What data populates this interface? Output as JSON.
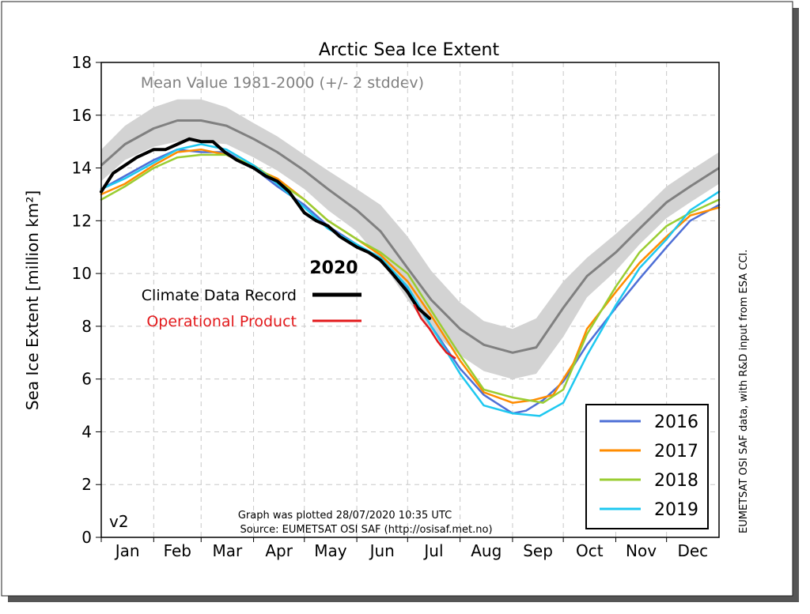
{
  "chart_data": {
    "type": "line",
    "title": "Arctic Sea Ice Extent",
    "subtitle": "Mean Value 1981-2000 (+/- 2 stddev)",
    "ylabel": "Sea Ice Extent [million km²]",
    "xlabel": "",
    "ylim": [
      0,
      18
    ],
    "xlim": [
      1,
      366
    ],
    "yticks": [
      0,
      2,
      4,
      6,
      8,
      10,
      12,
      14,
      16,
      18
    ],
    "months": [
      "Jan",
      "Feb",
      "Mar",
      "Apr",
      "May",
      "Jun",
      "Jul",
      "Aug",
      "Sep",
      "Oct",
      "Nov",
      "Dec"
    ],
    "grid": true,
    "version_label": "v2",
    "plotted_note": "Graph was plotted 28/07/2020 10:35 UTC",
    "source_note": "Source: EUMETSAT OSI SAF (http://osisaf.met.no)",
    "side_note": "EUMETSAT OSI SAF data, with R&D input from ESA CCI.",
    "colors": {
      "mean": "#808080",
      "band": "#d3d3d3",
      "cdr": "#000000",
      "operational": "#e31a1c",
      "y2016": "#4e6fd6",
      "y2017": "#ff8c00",
      "y2018": "#9acd32",
      "y2019": "#1ec8f0"
    },
    "mean": {
      "x": [
        1,
        15,
        32,
        46,
        60,
        75,
        91,
        105,
        121,
        135,
        152,
        166,
        182,
        196,
        213,
        227,
        244,
        258,
        274,
        288,
        305,
        319,
        335,
        349,
        366
      ],
      "y": [
        14.1,
        14.9,
        15.5,
        15.8,
        15.8,
        15.6,
        15.1,
        14.6,
        13.9,
        13.2,
        12.4,
        11.6,
        10.2,
        9.0,
        7.9,
        7.3,
        7.0,
        7.2,
        8.7,
        9.9,
        10.8,
        11.7,
        12.7,
        13.3,
        14.0
      ],
      "upper": [
        14.7,
        15.6,
        16.3,
        16.6,
        16.6,
        16.3,
        15.7,
        15.2,
        14.5,
        13.9,
        13.2,
        12.6,
        11.4,
        10.1,
        8.9,
        8.2,
        7.9,
        8.3,
        9.7,
        10.6,
        11.5,
        12.3,
        13.3,
        13.9,
        14.6
      ],
      "lower": [
        13.5,
        14.3,
        14.8,
        15.0,
        15.0,
        14.9,
        14.4,
        13.9,
        13.2,
        12.4,
        11.6,
        10.5,
        9.0,
        7.8,
        6.9,
        6.3,
        6.0,
        6.2,
        7.6,
        9.1,
        10.1,
        11.1,
        12.1,
        12.7,
        13.4
      ]
    },
    "series": [
      {
        "name": "2016",
        "x": [
          1,
          15,
          32,
          46,
          60,
          75,
          91,
          105,
          121,
          135,
          152,
          166,
          182,
          196,
          213,
          227,
          244,
          252,
          262,
          274,
          288,
          305,
          319,
          335,
          349,
          366
        ],
        "y": [
          13.2,
          13.7,
          14.3,
          14.7,
          14.6,
          14.6,
          14.0,
          13.3,
          12.6,
          11.8,
          11.1,
          10.5,
          9.4,
          8.0,
          6.4,
          5.4,
          4.7,
          4.8,
          5.2,
          5.9,
          7.3,
          8.7,
          9.8,
          11.0,
          12.0,
          12.6
        ]
      },
      {
        "name": "2017",
        "x": [
          1,
          15,
          32,
          46,
          60,
          75,
          91,
          105,
          121,
          135,
          152,
          166,
          182,
          196,
          213,
          227,
          244,
          256,
          268,
          280,
          288,
          305,
          319,
          335,
          349,
          366
        ],
        "y": [
          13.0,
          13.4,
          14.1,
          14.6,
          14.7,
          14.5,
          14.0,
          13.6,
          12.8,
          12.0,
          11.3,
          10.7,
          9.7,
          8.4,
          6.7,
          5.5,
          5.1,
          5.2,
          5.4,
          6.6,
          7.9,
          9.3,
          10.4,
          11.4,
          12.2,
          12.5
        ]
      },
      {
        "name": "2018",
        "x": [
          1,
          15,
          32,
          46,
          60,
          75,
          91,
          105,
          121,
          135,
          152,
          166,
          182,
          196,
          213,
          227,
          244,
          262,
          274,
          288,
          305,
          319,
          335,
          349,
          366
        ],
        "y": [
          12.8,
          13.3,
          14.0,
          14.4,
          14.5,
          14.5,
          14.1,
          13.5,
          12.8,
          12.0,
          11.3,
          10.8,
          10.0,
          8.6,
          6.9,
          5.6,
          5.3,
          5.1,
          5.6,
          7.7,
          9.5,
          10.8,
          11.8,
          12.3,
          12.8
        ]
      },
      {
        "name": "2019",
        "x": [
          1,
          15,
          32,
          46,
          60,
          75,
          91,
          105,
          121,
          135,
          152,
          166,
          182,
          196,
          213,
          227,
          244,
          260,
          274,
          288,
          305,
          319,
          335,
          349,
          366
        ],
        "y": [
          13.2,
          13.6,
          14.2,
          14.7,
          14.9,
          14.7,
          14.1,
          13.4,
          12.5,
          11.7,
          11.1,
          10.6,
          9.5,
          8.0,
          6.2,
          5.0,
          4.7,
          4.6,
          5.1,
          6.9,
          8.8,
          10.2,
          11.3,
          12.4,
          13.1
        ]
      },
      {
        "name": "Climate Data Record",
        "year_label": "2020",
        "x": [
          1,
          8,
          15,
          22,
          32,
          39,
          46,
          53,
          60,
          67,
          74,
          81,
          91,
          98,
          105,
          112,
          121,
          128,
          135,
          142,
          152,
          159,
          166,
          173,
          182,
          188,
          195
        ],
        "y": [
          13.1,
          13.8,
          14.1,
          14.4,
          14.7,
          14.7,
          14.9,
          15.1,
          15.0,
          15.0,
          14.6,
          14.3,
          14.0,
          13.7,
          13.5,
          13.1,
          12.3,
          12.0,
          11.8,
          11.4,
          11.0,
          10.8,
          10.5,
          10.0,
          9.3,
          8.7,
          8.3
        ]
      },
      {
        "name": "Operational Product",
        "x": [
          186,
          190,
          195,
          200,
          205,
          210
        ],
        "y": [
          8.8,
          8.3,
          7.9,
          7.4,
          7.0,
          6.8
        ]
      }
    ],
    "legend": {
      "placement": "lower-right",
      "entries": [
        "2016",
        "2017",
        "2018",
        "2019"
      ]
    },
    "annotation_legend": {
      "placement": "center-left",
      "header": "2020",
      "entries": [
        "Climate Data Record",
        "Operational Product"
      ]
    }
  }
}
